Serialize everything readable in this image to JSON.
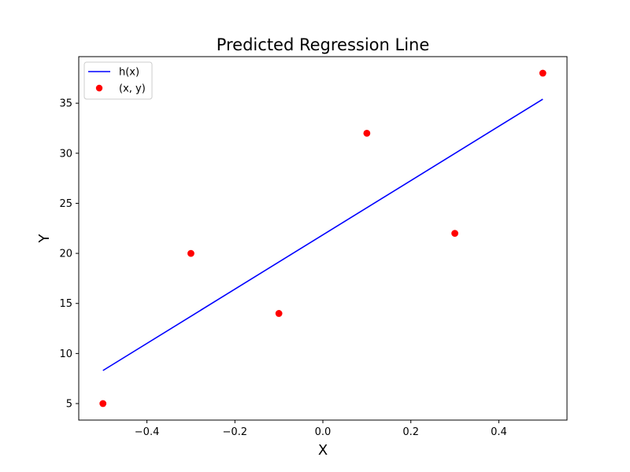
{
  "chart_data": {
    "type": "scatter",
    "title": "Predicted Regression Line",
    "xlabel": "X",
    "ylabel": "Y",
    "xlim": [
      -0.555,
      0.555
    ],
    "ylim": [
      3.35,
      39.65
    ],
    "xticks": [
      -0.4,
      -0.2,
      0.0,
      0.2,
      0.4
    ],
    "xtick_labels": [
      "−0.4",
      "−0.2",
      "0.0",
      "0.2",
      "0.4"
    ],
    "yticks": [
      5,
      10,
      15,
      20,
      25,
      30,
      35
    ],
    "ytick_labels": [
      "5",
      "10",
      "15",
      "20",
      "25",
      "30",
      "35"
    ],
    "grid": false,
    "legend_position": "top-left",
    "series": [
      {
        "name": "h(x)",
        "kind": "line",
        "color": "#0000ff",
        "x": [
          -0.5,
          0.5
        ],
        "y": [
          8.3,
          35.4
        ]
      },
      {
        "name": "(x, y)",
        "kind": "scatter",
        "color": "#ff0000",
        "x": [
          -0.5,
          -0.3,
          -0.1,
          0.1,
          0.3,
          0.5
        ],
        "y": [
          5,
          20,
          14,
          32,
          22,
          38
        ]
      }
    ]
  }
}
